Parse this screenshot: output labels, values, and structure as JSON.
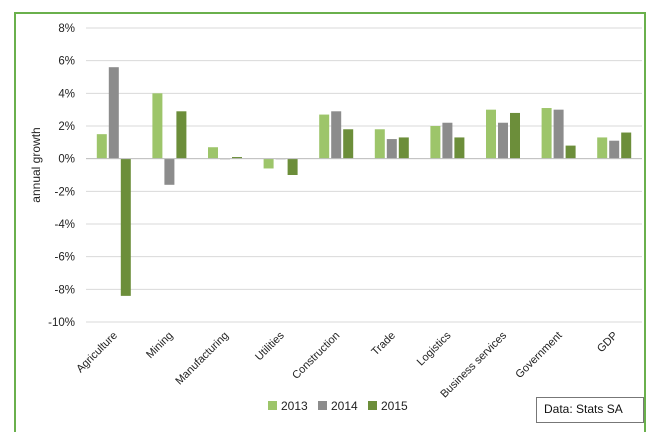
{
  "source_note": "Data: Stats SA",
  "chart_data": {
    "type": "bar",
    "title": "",
    "ylabel": "annual growth",
    "xlabel": "",
    "categories": [
      "Agriculture",
      "Mining",
      "Manufacturing",
      "Utilities",
      "Construction",
      "Trade",
      "Logistics",
      "Business services",
      "Government",
      "GDP"
    ],
    "series": [
      {
        "name": "2013",
        "color": "#9dc56a",
        "values": [
          1.5,
          4.0,
          0.7,
          -0.6,
          2.7,
          1.8,
          2.0,
          3.0,
          3.1,
          1.3
        ]
      },
      {
        "name": "2014",
        "color": "#8c8c8c",
        "values": [
          5.6,
          -1.6,
          0.0,
          0.0,
          2.9,
          1.2,
          2.2,
          2.2,
          3.0,
          1.1
        ]
      },
      {
        "name": "2015",
        "color": "#6c8e3a",
        "values": [
          -8.4,
          2.9,
          0.1,
          -1.0,
          1.8,
          1.3,
          1.3,
          2.8,
          0.8,
          1.6
        ]
      }
    ],
    "ylim": [
      -10,
      8
    ],
    "yticks": [
      -10,
      -8,
      -6,
      -4,
      -2,
      0,
      2,
      4,
      6,
      8
    ],
    "ytick_labels": [
      "-10%",
      "-8%",
      "-6%",
      "-4%",
      "-2%",
      "0%",
      "2%",
      "4%",
      "6%",
      "8%"
    ],
    "grid": true,
    "legend_position": "bottom"
  }
}
